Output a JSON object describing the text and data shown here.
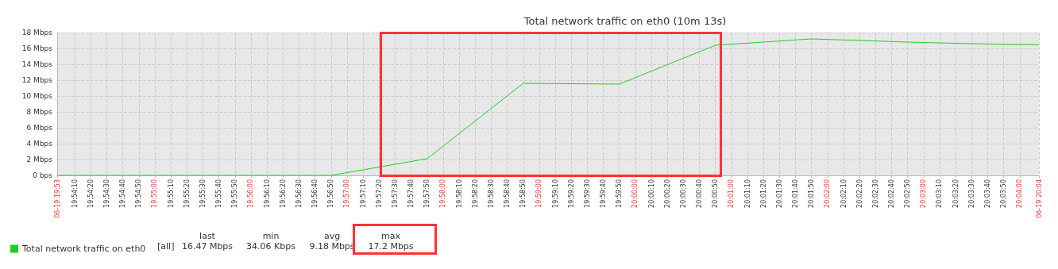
{
  "chart_data": {
    "type": "line",
    "title": "Total network traffic on eth0 (10m 13s)",
    "x": [
      19.899722,
      19.913889,
      19.930556,
      19.947222,
      19.963889,
      19.980556,
      19.997222,
      20.013889,
      20.030556,
      20.047222,
      20.063889,
      20.07
    ],
    "series": [
      {
        "name": "Total network traffic on eth0",
        "color": "#22cc22",
        "values": [
          0,
          0,
          0,
          0,
          2.1,
          11.6,
          11.5,
          16.4,
          17.2,
          16.8,
          16.5,
          16.47
        ]
      }
    ],
    "xlim": [
      19.899722,
      20.07
    ],
    "xticks": [
      {
        "value": 19.899722,
        "label": "06-19 19:53"
      },
      {
        "value": 19.902778,
        "label": "19:54:10"
      },
      {
        "value": 19.905556,
        "label": "19:54:20"
      },
      {
        "value": 19.908333,
        "label": "19:54:30"
      },
      {
        "value": 19.911111,
        "label": "19:54:40"
      },
      {
        "value": 19.913889,
        "label": "19:54:50"
      },
      {
        "value": 19.916667,
        "label": "19:55:00"
      },
      {
        "value": 19.919444,
        "label": "19:55:10"
      },
      {
        "value": 19.922222,
        "label": "19:55:20"
      },
      {
        "value": 19.925,
        "label": "19:55:30"
      },
      {
        "value": 19.927778,
        "label": "19:55:40"
      },
      {
        "value": 19.930556,
        "label": "19:55:50"
      },
      {
        "value": 19.933333,
        "label": "19:56:00"
      },
      {
        "value": 19.936111,
        "label": "19:56:10"
      },
      {
        "value": 19.938889,
        "label": "19:56:20"
      },
      {
        "value": 19.941667,
        "label": "19:56:30"
      },
      {
        "value": 19.944444,
        "label": "19:56:40"
      },
      {
        "value": 19.947222,
        "label": "19:56:50"
      },
      {
        "value": 19.95,
        "label": "19:57:00"
      },
      {
        "value": 19.952778,
        "label": "19:57:10"
      },
      {
        "value": 19.955556,
        "label": "19:57:20"
      },
      {
        "value": 19.958333,
        "label": "19:57:30"
      },
      {
        "value": 19.961111,
        "label": "19:57:40"
      },
      {
        "value": 19.963889,
        "label": "19:57:50"
      },
      {
        "value": 19.966667,
        "label": "19:58:00"
      },
      {
        "value": 19.969444,
        "label": "19:58:10"
      },
      {
        "value": 19.972222,
        "label": "19:58:20"
      },
      {
        "value": 19.975,
        "label": "19:58:30"
      },
      {
        "value": 19.977778,
        "label": "19:58:40"
      },
      {
        "value": 19.980556,
        "label": "19:58:50"
      },
      {
        "value": 19.983333,
        "label": "19:59:00"
      },
      {
        "value": 19.986111,
        "label": "19:59:10"
      },
      {
        "value": 19.988889,
        "label": "19:59:20"
      },
      {
        "value": 19.991667,
        "label": "19:59:30"
      },
      {
        "value": 19.994444,
        "label": "19:59:40"
      },
      {
        "value": 19.997222,
        "label": "19:59:50"
      },
      {
        "value": 20.0,
        "label": "20:00:00"
      },
      {
        "value": 20.002778,
        "label": "20:00:10"
      },
      {
        "value": 20.005556,
        "label": "20:00:20"
      },
      {
        "value": 20.008333,
        "label": "20:00:30"
      },
      {
        "value": 20.011111,
        "label": "20:00:40"
      },
      {
        "value": 20.013889,
        "label": "20:00:50"
      },
      {
        "value": 20.016667,
        "label": "20:01:00"
      },
      {
        "value": 20.019444,
        "label": "20:01:10"
      },
      {
        "value": 20.022222,
        "label": "20:01:20"
      },
      {
        "value": 20.025,
        "label": "20:01:30"
      },
      {
        "value": 20.027778,
        "label": "20:01:40"
      },
      {
        "value": 20.030556,
        "label": "20:01:50"
      },
      {
        "value": 20.033333,
        "label": "20:02:00"
      },
      {
        "value": 20.036111,
        "label": "20:02:10"
      },
      {
        "value": 20.038889,
        "label": "20:02:20"
      },
      {
        "value": 20.041667,
        "label": "20:02:30"
      },
      {
        "value": 20.044444,
        "label": "20:02:40"
      },
      {
        "value": 20.047222,
        "label": "20:02:50"
      },
      {
        "value": 20.05,
        "label": "20:03:00"
      },
      {
        "value": 20.052778,
        "label": "20:03:10"
      },
      {
        "value": 20.055556,
        "label": "20:03:20"
      },
      {
        "value": 20.058333,
        "label": "20:03:30"
      },
      {
        "value": 20.061111,
        "label": "20:03:40"
      },
      {
        "value": 20.063889,
        "label": "20:03:50"
      },
      {
        "value": 20.066667,
        "label": "20:04:00"
      },
      {
        "value": 20.07,
        "label": "06-19 20:04"
      }
    ],
    "ylim": [
      0,
      18
    ],
    "yticks": [
      {
        "value": 0,
        "label": "0 bps"
      },
      {
        "value": 2,
        "label": "2 Mbps"
      },
      {
        "value": 4,
        "label": "4 Mbps"
      },
      {
        "value": 6,
        "label": "6 Mbps"
      },
      {
        "value": 8,
        "label": "8 Mbps"
      },
      {
        "value": 10,
        "label": "10 Mbps"
      },
      {
        "value": 12,
        "label": "12 Mbps"
      },
      {
        "value": 14,
        "label": "14 Mbps"
      },
      {
        "value": 16,
        "label": "16 Mbps"
      },
      {
        "value": 18,
        "label": "18 Mbps"
      }
    ],
    "grid": true,
    "legend": "bottom left",
    "marker": "none",
    "line_style": "solid",
    "annotations": [
      "[all]",
      "last",
      "16.47 Mbps",
      "min",
      "34.06 Kbps",
      "avg",
      "9.18 Mbps",
      "max",
      "17.2 Mbps"
    ]
  }
}
